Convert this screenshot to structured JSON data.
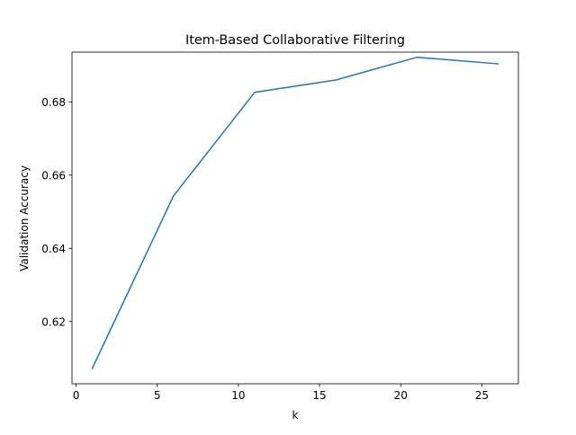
{
  "chart_data": {
    "type": "line",
    "title": "Item-Based Collaborative Filtering",
    "xlabel": "k",
    "ylabel": "Validation Accuracy",
    "x": [
      1,
      6,
      11,
      16,
      21,
      26
    ],
    "series": [
      {
        "name": "",
        "values": [
          0.6072,
          0.6543,
          0.6826,
          0.686,
          0.6922,
          0.6904
        ]
      }
    ],
    "xlim": [
      -0.25,
      27.25
    ],
    "ylim": [
      0.603,
      0.6936
    ],
    "xticks": [
      0,
      5,
      10,
      15,
      20,
      25
    ],
    "xtick_labels": [
      "0",
      "5",
      "10",
      "15",
      "20",
      "25"
    ],
    "yticks": [
      0.62,
      0.64,
      0.66,
      0.68
    ],
    "ytick_labels": [
      "0.62",
      "0.64",
      "0.66",
      "0.68"
    ],
    "grid": false,
    "legend": "none",
    "line_color": "#1f77b4"
  }
}
